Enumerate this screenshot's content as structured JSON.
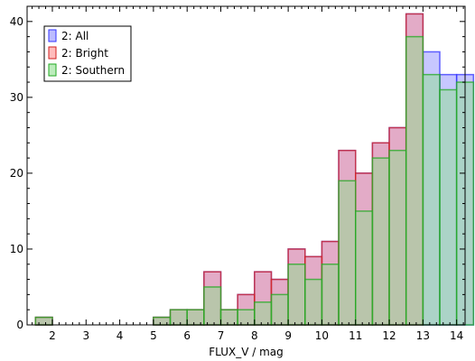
{
  "chart_data": {
    "type": "bar",
    "xlabel": "FLUX_V / mag",
    "ylabel": "",
    "xlim": [
      1.25,
      14.25
    ],
    "ylim": [
      0,
      42
    ],
    "x_ticks": [
      2,
      3,
      4,
      5,
      6,
      7,
      8,
      9,
      10,
      11,
      12,
      13,
      14
    ],
    "y_ticks": [
      0,
      10,
      20,
      30,
      40
    ],
    "bin_width": 0.5,
    "legend_position": "top-left",
    "series": [
      {
        "name": "2: All",
        "fill": "#8f8fff",
        "stroke": "#3333ff",
        "bins": [
          [
            1.5,
            1
          ],
          [
            5.0,
            1
          ],
          [
            5.5,
            2
          ],
          [
            6.0,
            2
          ],
          [
            6.5,
            7
          ],
          [
            7.0,
            2
          ],
          [
            7.5,
            4
          ],
          [
            8.0,
            7
          ],
          [
            8.5,
            6
          ],
          [
            9.0,
            10
          ],
          [
            9.5,
            9
          ],
          [
            10.0,
            11
          ],
          [
            10.5,
            23
          ],
          [
            11.0,
            20
          ],
          [
            11.5,
            24
          ],
          [
            12.0,
            26
          ],
          [
            12.5,
            41
          ],
          [
            13.0,
            36
          ],
          [
            13.5,
            33
          ],
          [
            14.0,
            33
          ]
        ]
      },
      {
        "name": "2: Bright",
        "fill": "#ff8f8f",
        "stroke": "#d22020",
        "bins": [
          [
            1.5,
            1
          ],
          [
            5.0,
            1
          ],
          [
            5.5,
            2
          ],
          [
            6.0,
            2
          ],
          [
            6.5,
            7
          ],
          [
            7.0,
            2
          ],
          [
            7.5,
            4
          ],
          [
            8.0,
            7
          ],
          [
            8.5,
            6
          ],
          [
            9.0,
            10
          ],
          [
            9.5,
            9
          ],
          [
            10.0,
            11
          ],
          [
            10.5,
            23
          ],
          [
            11.0,
            20
          ],
          [
            11.5,
            24
          ],
          [
            12.0,
            26
          ],
          [
            12.5,
            41
          ]
        ]
      },
      {
        "name": "2: Southern",
        "fill": "#8fdf8f",
        "stroke": "#22aa22",
        "bins": [
          [
            1.5,
            1
          ],
          [
            5.0,
            1
          ],
          [
            5.5,
            2
          ],
          [
            6.0,
            2
          ],
          [
            6.5,
            5
          ],
          [
            7.0,
            2
          ],
          [
            7.5,
            2
          ],
          [
            8.0,
            3
          ],
          [
            8.5,
            4
          ],
          [
            9.0,
            8
          ],
          [
            9.5,
            6
          ],
          [
            10.0,
            8
          ],
          [
            10.5,
            19
          ],
          [
            11.0,
            15
          ],
          [
            11.5,
            22
          ],
          [
            12.0,
            23
          ],
          [
            12.5,
            38
          ],
          [
            13.0,
            33
          ],
          [
            13.5,
            31
          ],
          [
            14.0,
            32
          ]
        ]
      }
    ]
  }
}
